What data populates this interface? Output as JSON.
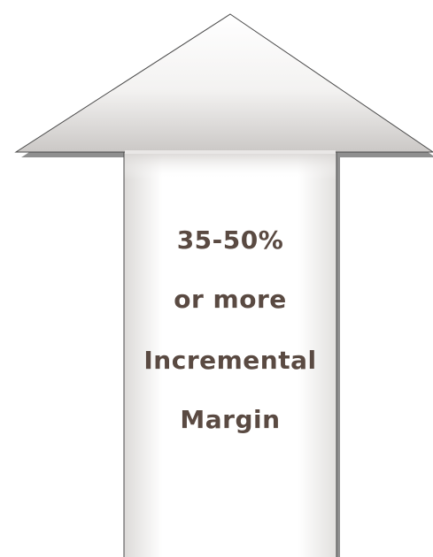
{
  "arrow": {
    "lines": [
      "35-50%",
      "or more",
      "Incremental",
      "Margin"
    ],
    "text_color": "#5a4a42",
    "shadow_color": "#8a8a8a",
    "outline_color": "#4a4a4a",
    "fill_top": "#c9c6c4",
    "fill_mid": "#ffffff",
    "direction": "up"
  }
}
